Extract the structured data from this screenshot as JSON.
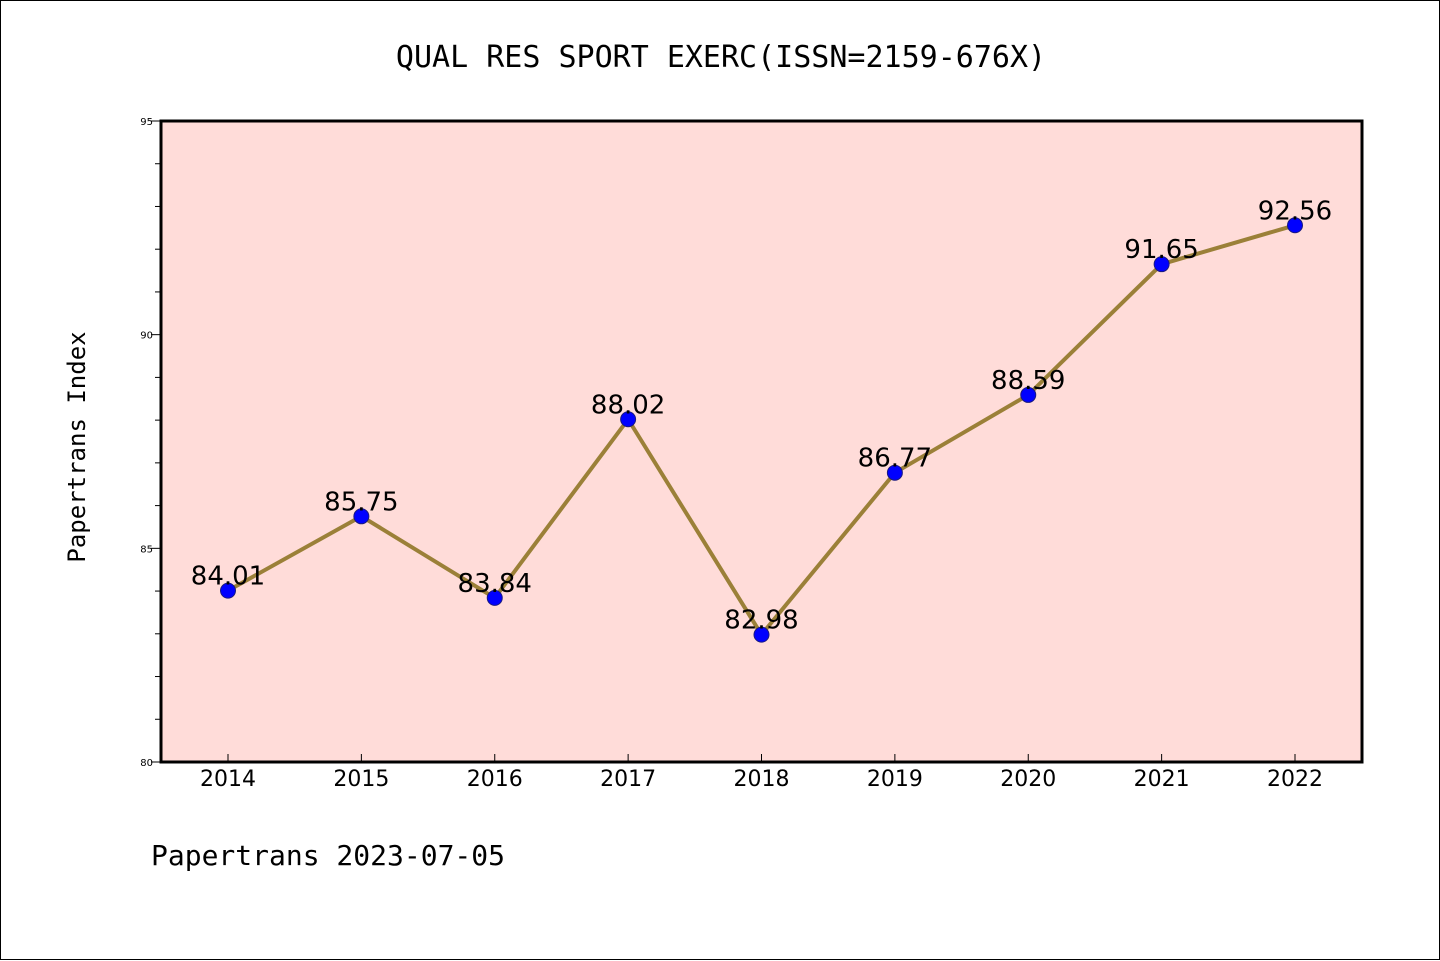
{
  "chart_data": {
    "type": "line",
    "title": "QUAL RES SPORT EXERC(ISSN=2159-676X)",
    "xlabel": "",
    "ylabel": "Papertrans Index",
    "categories": [
      "2014",
      "2015",
      "2016",
      "2017",
      "2018",
      "2019",
      "2020",
      "2021",
      "2022"
    ],
    "values": [
      84.01,
      85.75,
      83.84,
      88.02,
      82.98,
      86.77,
      88.59,
      91.65,
      92.56
    ],
    "data_labels": [
      "84.01",
      "85.75",
      "83.84",
      "88.02",
      "82.98",
      "86.77",
      "88.59",
      "91.65",
      "92.56"
    ],
    "ylim": [
      80,
      95
    ],
    "yticks": [
      80,
      85,
      90,
      95
    ],
    "ytick_labels": [
      "80",
      "85",
      "90",
      "95"
    ],
    "grid": false,
    "legend": "none",
    "colors": {
      "plot_background": "#ffdcd9",
      "line": "#9b8038",
      "marker": "#0000ff"
    }
  },
  "footer": "Papertrans 2023-07-05"
}
